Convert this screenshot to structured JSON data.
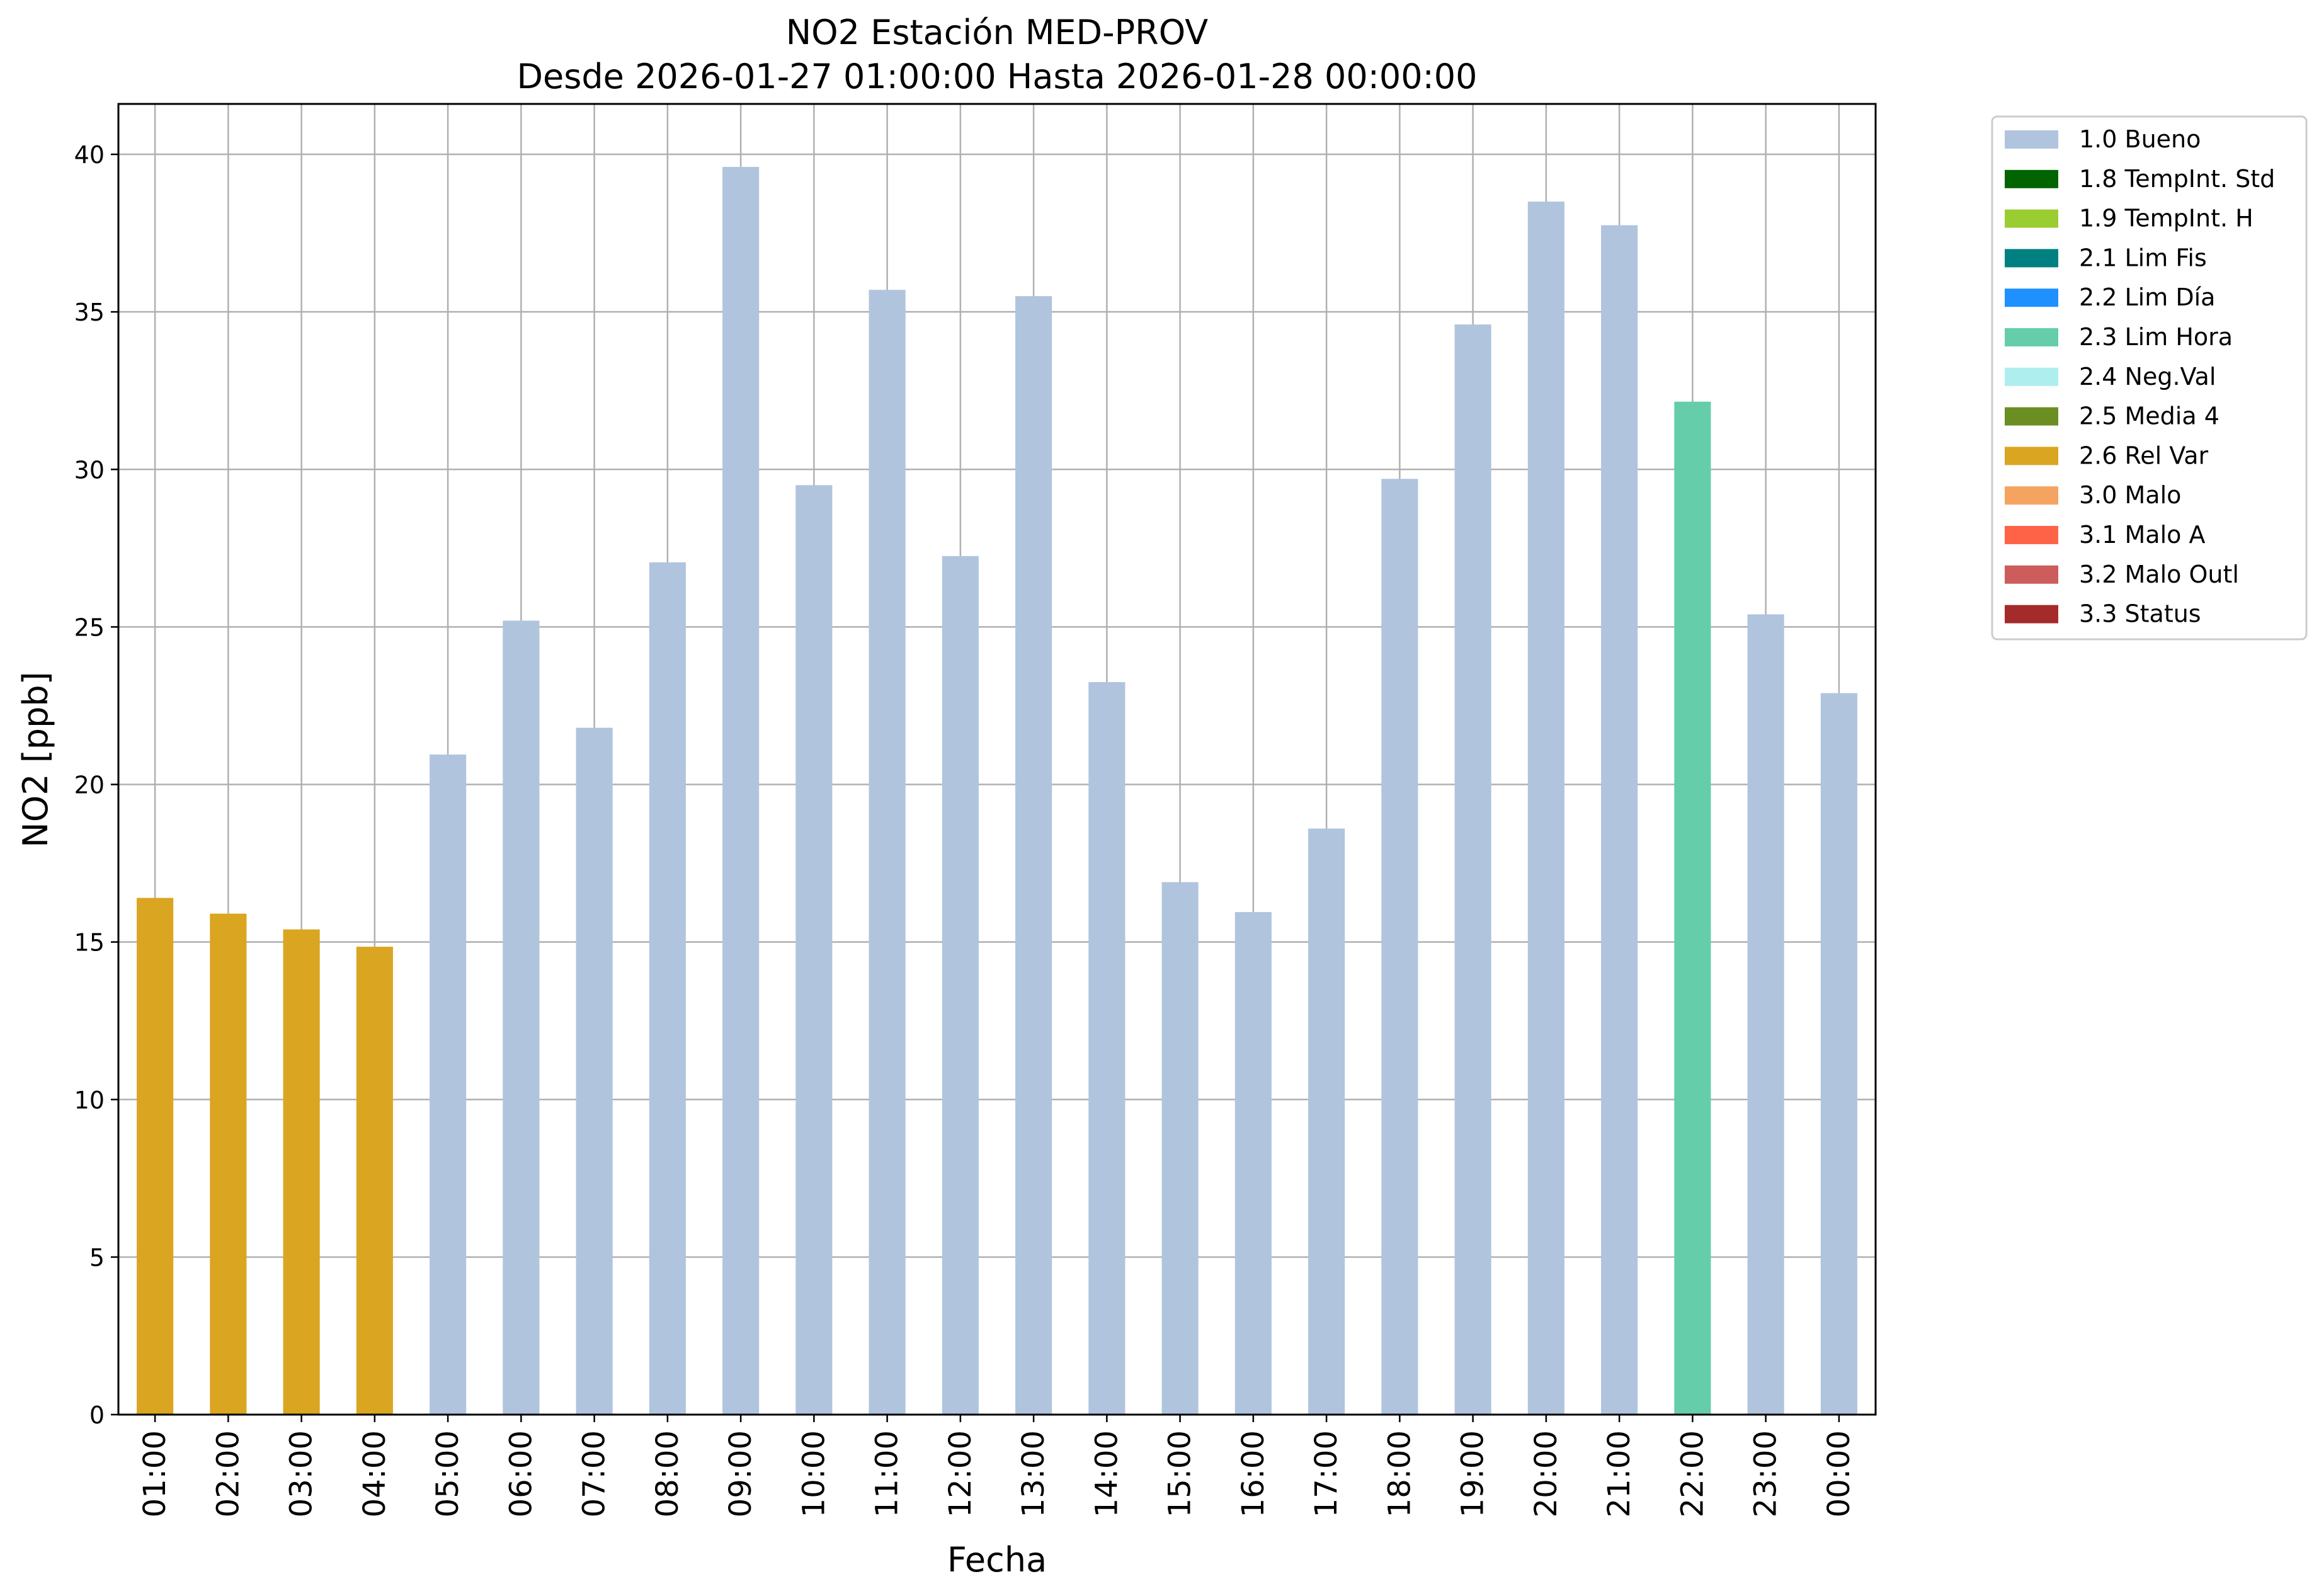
{
  "chart_data": {
    "type": "bar",
    "title": "NO2 Estación MED-PROV",
    "subtitle": "Desde 2026-01-27 01:00:00 Hasta 2026-01-28 00:00:00",
    "xlabel": "Fecha",
    "ylabel": "NO2 [ppb]",
    "ylim": [
      0,
      41.6
    ],
    "yticks": [
      "0",
      "5",
      "10",
      "15",
      "20",
      "25",
      "30",
      "35",
      "40"
    ],
    "grid": true,
    "legend_position": "outside-top-right",
    "categories": [
      "01:00",
      "02:00",
      "03:00",
      "04:00",
      "05:00",
      "06:00",
      "07:00",
      "08:00",
      "09:00",
      "10:00",
      "11:00",
      "12:00",
      "13:00",
      "14:00",
      "15:00",
      "16:00",
      "17:00",
      "18:00",
      "19:00",
      "20:00",
      "21:00",
      "22:00",
      "23:00",
      "00:00"
    ],
    "values": [
      16.4,
      15.9,
      15.4,
      14.85,
      20.95,
      25.2,
      21.8,
      27.05,
      39.6,
      29.5,
      35.7,
      27.25,
      35.5,
      23.25,
      16.9,
      15.95,
      18.6,
      29.7,
      34.6,
      38.5,
      37.75,
      32.15,
      25.4,
      22.9
    ],
    "flags": [
      "2.6 Rel Var",
      "2.6 Rel Var",
      "2.6 Rel Var",
      "2.6 Rel Var",
      "1.0 Bueno",
      "1.0 Bueno",
      "1.0 Bueno",
      "1.0 Bueno",
      "1.0 Bueno",
      "1.0 Bueno",
      "1.0 Bueno",
      "1.0 Bueno",
      "1.0 Bueno",
      "1.0 Bueno",
      "1.0 Bueno",
      "1.0 Bueno",
      "1.0 Bueno",
      "1.0 Bueno",
      "1.0 Bueno",
      "1.0 Bueno",
      "1.0 Bueno",
      "2.3 Lim Hora",
      "1.0 Bueno",
      "1.0 Bueno"
    ],
    "legend": [
      {
        "label": "1.0 Bueno",
        "color": "#b0c4de"
      },
      {
        "label": "1.8 TempInt. Std",
        "color": "#006400"
      },
      {
        "label": "1.9 TempInt. H",
        "color": "#9acd32"
      },
      {
        "label": "2.1 Lim Fis",
        "color": "#008080"
      },
      {
        "label": "2.2 Lim Día",
        "color": "#1e90ff"
      },
      {
        "label": "2.3 Lim Hora",
        "color": "#66cdaa"
      },
      {
        "label": "2.4 Neg.Val",
        "color": "#afeeee"
      },
      {
        "label": "2.5 Media 4",
        "color": "#6b8e23"
      },
      {
        "label": "2.6 Rel Var",
        "color": "#daa520"
      },
      {
        "label": "3.0 Malo",
        "color": "#f4a460"
      },
      {
        "label": "3.1 Malo A",
        "color": "#ff6347"
      },
      {
        "label": "3.2 Malo Outl",
        "color": "#cd5c5c"
      },
      {
        "label": "3.3 Status",
        "color": "#a52a2a"
      }
    ]
  }
}
